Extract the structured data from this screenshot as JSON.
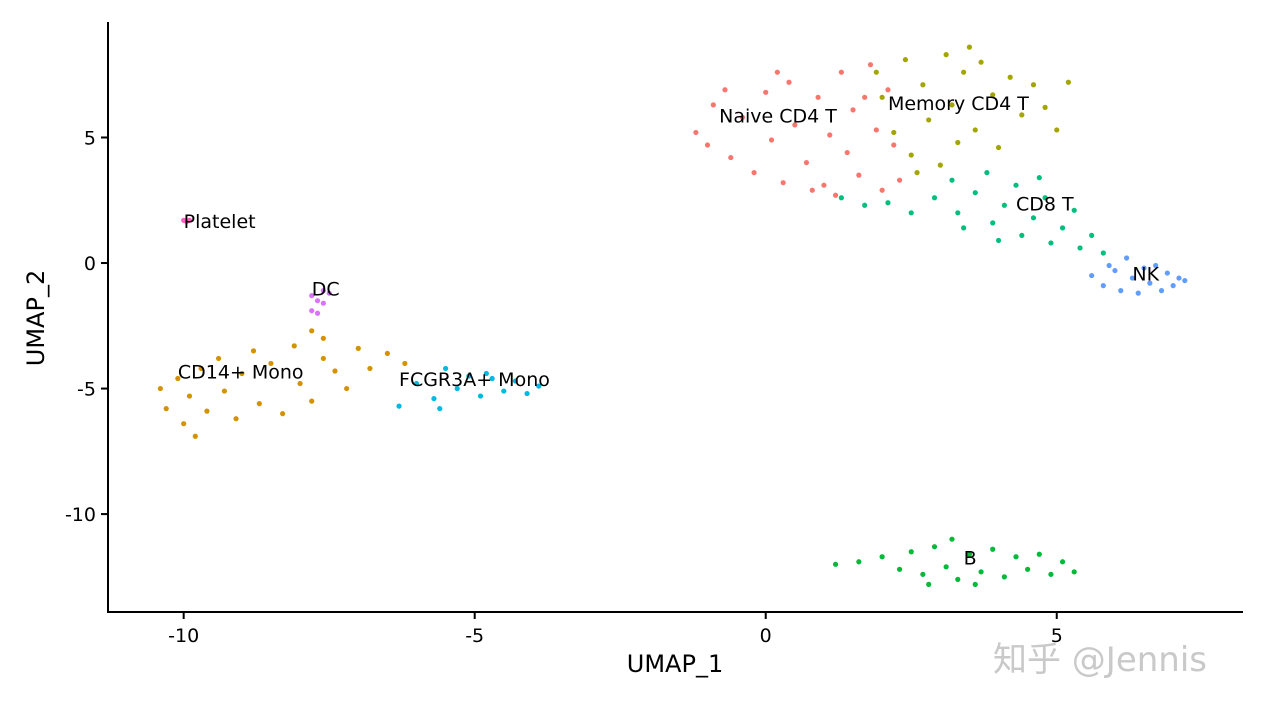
{
  "chart_data": {
    "type": "scatter",
    "xlabel": "UMAP_1",
    "ylabel": "UMAP_2",
    "xlim": [
      -11.3,
      8.2
    ],
    "ylim": [
      -13.9,
      9.6
    ],
    "xticks": [
      -10,
      -5,
      0,
      5
    ],
    "yticks": [
      -10,
      -5,
      0,
      5
    ],
    "xtick_labels": [
      "-10",
      "-5",
      "0",
      "5"
    ],
    "ytick_labels": [
      "-10",
      "-5",
      "0",
      "5"
    ],
    "grid": false,
    "legend": "none",
    "clusters": [
      {
        "name": "Naive CD4 T",
        "color": "#F8766D",
        "label_pos": [
          -0.8,
          5.6
        ],
        "points": [
          [
            -1.2,
            5.2
          ],
          [
            -0.9,
            6.3
          ],
          [
            -0.6,
            4.2
          ],
          [
            -0.4,
            5.8
          ],
          [
            -0.2,
            3.6
          ],
          [
            0.0,
            6.8
          ],
          [
            0.1,
            4.9
          ],
          [
            0.3,
            3.2
          ],
          [
            0.4,
            7.2
          ],
          [
            0.5,
            5.5
          ],
          [
            0.7,
            4.0
          ],
          [
            0.9,
            6.6
          ],
          [
            1.0,
            3.1
          ],
          [
            1.1,
            5.1
          ],
          [
            1.3,
            7.6
          ],
          [
            1.4,
            4.4
          ],
          [
            1.5,
            6.1
          ],
          [
            1.6,
            3.5
          ],
          [
            1.8,
            7.9
          ],
          [
            1.9,
            5.3
          ],
          [
            2.0,
            2.9
          ],
          [
            2.1,
            6.9
          ],
          [
            2.2,
            4.7
          ],
          [
            -1.0,
            4.7
          ],
          [
            -0.7,
            6.9
          ],
          [
            0.2,
            7.6
          ],
          [
            0.8,
            2.9
          ],
          [
            1.2,
            2.7
          ],
          [
            1.7,
            6.6
          ],
          [
            2.3,
            3.3
          ]
        ]
      },
      {
        "name": "Memory CD4 T",
        "color": "#A3A500",
        "label_pos": [
          2.1,
          6.1
        ],
        "points": [
          [
            1.9,
            7.6
          ],
          [
            2.0,
            6.6
          ],
          [
            2.2,
            5.2
          ],
          [
            2.4,
            8.1
          ],
          [
            2.5,
            4.3
          ],
          [
            2.7,
            7.1
          ],
          [
            2.8,
            5.7
          ],
          [
            3.0,
            3.9
          ],
          [
            3.1,
            8.3
          ],
          [
            3.2,
            6.3
          ],
          [
            3.3,
            4.8
          ],
          [
            3.4,
            7.6
          ],
          [
            3.6,
            5.3
          ],
          [
            3.7,
            8.0
          ],
          [
            3.9,
            6.7
          ],
          [
            4.0,
            4.6
          ],
          [
            4.2,
            7.4
          ],
          [
            4.4,
            5.9
          ],
          [
            4.6,
            7.1
          ],
          [
            4.8,
            6.2
          ],
          [
            5.0,
            5.3
          ],
          [
            5.2,
            7.2
          ],
          [
            3.5,
            8.6
          ],
          [
            2.6,
            3.6
          ]
        ]
      },
      {
        "name": "CD8 T",
        "color": "#00BF7D",
        "label_pos": [
          4.3,
          2.1
        ],
        "points": [
          [
            1.3,
            2.6
          ],
          [
            1.7,
            2.3
          ],
          [
            2.1,
            2.4
          ],
          [
            2.5,
            2.0
          ],
          [
            2.9,
            2.6
          ],
          [
            3.2,
            3.3
          ],
          [
            3.4,
            1.4
          ],
          [
            3.6,
            2.8
          ],
          [
            3.8,
            3.6
          ],
          [
            3.9,
            1.6
          ],
          [
            4.1,
            2.3
          ],
          [
            4.3,
            3.1
          ],
          [
            4.4,
            1.1
          ],
          [
            4.6,
            1.8
          ],
          [
            4.8,
            2.6
          ],
          [
            4.9,
            0.8
          ],
          [
            5.1,
            1.4
          ],
          [
            5.3,
            2.1
          ],
          [
            5.4,
            0.6
          ],
          [
            5.6,
            1.1
          ],
          [
            5.8,
            0.4
          ],
          [
            4.0,
            0.9
          ],
          [
            3.3,
            2.0
          ],
          [
            4.7,
            3.4
          ]
        ]
      },
      {
        "name": "NK",
        "color": "#619CFF",
        "label_pos": [
          6.3,
          -0.7
        ],
        "points": [
          [
            5.6,
            -0.5
          ],
          [
            5.8,
            -0.9
          ],
          [
            6.0,
            -0.3
          ],
          [
            6.1,
            -1.1
          ],
          [
            6.3,
            -0.6
          ],
          [
            6.4,
            -1.2
          ],
          [
            6.5,
            -0.2
          ],
          [
            6.6,
            -0.8
          ],
          [
            6.8,
            -1.1
          ],
          [
            6.9,
            -0.4
          ],
          [
            7.0,
            -0.9
          ],
          [
            7.1,
            -0.6
          ],
          [
            6.2,
            0.2
          ],
          [
            5.9,
            -0.1
          ],
          [
            6.7,
            -0.1
          ],
          [
            7.2,
            -0.7
          ]
        ]
      },
      {
        "name": "B",
        "color": "#00BA38",
        "label_pos": [
          3.4,
          -12.0
        ],
        "points": [
          [
            1.2,
            -12.0
          ],
          [
            1.6,
            -11.9
          ],
          [
            2.0,
            -11.7
          ],
          [
            2.3,
            -12.2
          ],
          [
            2.5,
            -11.5
          ],
          [
            2.7,
            -12.4
          ],
          [
            2.9,
            -11.3
          ],
          [
            3.1,
            -12.1
          ],
          [
            3.2,
            -11.0
          ],
          [
            3.3,
            -12.6
          ],
          [
            3.5,
            -11.6
          ],
          [
            3.7,
            -12.3
          ],
          [
            3.9,
            -11.4
          ],
          [
            4.1,
            -12.5
          ],
          [
            4.3,
            -11.7
          ],
          [
            4.5,
            -12.2
          ],
          [
            4.7,
            -11.6
          ],
          [
            4.9,
            -12.4
          ],
          [
            5.1,
            -11.9
          ],
          [
            5.3,
            -12.3
          ],
          [
            2.8,
            -12.8
          ],
          [
            3.6,
            -12.8
          ]
        ]
      },
      {
        "name": "CD14+ Mono",
        "color": "#D39200",
        "label_pos": [
          -10.1,
          -4.6
        ],
        "points": [
          [
            -10.4,
            -5.0
          ],
          [
            -10.3,
            -5.8
          ],
          [
            -10.1,
            -4.6
          ],
          [
            -10.0,
            -6.4
          ],
          [
            -9.9,
            -5.3
          ],
          [
            -9.8,
            -6.9
          ],
          [
            -9.7,
            -4.2
          ],
          [
            -9.6,
            -5.9
          ],
          [
            -9.4,
            -3.8
          ],
          [
            -9.3,
            -5.1
          ],
          [
            -9.1,
            -6.2
          ],
          [
            -9.0,
            -4.4
          ],
          [
            -8.8,
            -3.5
          ],
          [
            -8.7,
            -5.6
          ],
          [
            -8.5,
            -4.0
          ],
          [
            -8.3,
            -6.0
          ],
          [
            -8.1,
            -3.3
          ],
          [
            -8.0,
            -4.8
          ],
          [
            -7.8,
            -5.5
          ],
          [
            -7.6,
            -3.8
          ],
          [
            -7.4,
            -4.3
          ],
          [
            -7.2,
            -5.0
          ],
          [
            -7.0,
            -3.4
          ],
          [
            -6.8,
            -4.2
          ],
          [
            -6.5,
            -3.6
          ],
          [
            -6.2,
            -4.0
          ],
          [
            -7.8,
            -2.7
          ],
          [
            -7.6,
            -3.0
          ]
        ]
      },
      {
        "name": "FCGR3A+ Mono",
        "color": "#00B9E3",
        "label_pos": [
          -6.3,
          -4.9
        ],
        "points": [
          [
            -6.3,
            -5.7
          ],
          [
            -6.0,
            -4.8
          ],
          [
            -5.7,
            -5.4
          ],
          [
            -5.5,
            -4.2
          ],
          [
            -5.3,
            -5.0
          ],
          [
            -5.1,
            -4.5
          ],
          [
            -4.9,
            -5.3
          ],
          [
            -4.7,
            -4.6
          ],
          [
            -4.5,
            -5.1
          ],
          [
            -4.3,
            -4.7
          ],
          [
            -4.1,
            -5.2
          ],
          [
            -3.9,
            -4.9
          ],
          [
            -5.6,
            -5.8
          ],
          [
            -4.8,
            -4.4
          ]
        ]
      },
      {
        "name": "DC",
        "color": "#DB72FB",
        "label_pos": [
          -7.8,
          -1.3
        ],
        "points": [
          [
            -7.8,
            -1.9
          ],
          [
            -7.7,
            -1.5
          ],
          [
            -7.6,
            -1.1
          ],
          [
            -7.8,
            -1.3
          ],
          [
            -7.7,
            -2.0
          ],
          [
            -7.6,
            -1.6
          ],
          [
            -7.5,
            -1.2
          ]
        ]
      },
      {
        "name": "Platelet",
        "color": "#FF61C3",
        "label_pos": [
          -10.0,
          1.4
        ],
        "points": [
          [
            -10.0,
            1.7
          ],
          [
            -9.95,
            1.65
          ],
          [
            -9.9,
            1.7
          ]
        ]
      }
    ]
  },
  "watermark": "知乎 @Jennis"
}
